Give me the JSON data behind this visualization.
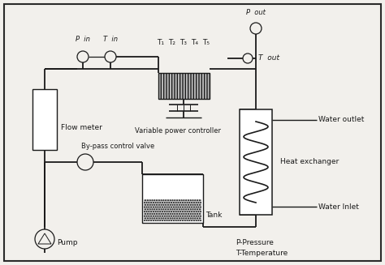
{
  "bg_color": "#f2f0ec",
  "border_color": "#2a2a2a",
  "line_color": "#1a1a1a",
  "labels": {
    "P_in": "P  in",
    "T_in": "T  in",
    "T1": "T₁",
    "T2": "T₂",
    "T3": "T₃",
    "T4": "T₄",
    "T5": "T₅",
    "P_out": "P  out",
    "T_out": "T  out",
    "water_outlet": "Water outlet",
    "heat_exchanger": "Heat exchanger",
    "water_inlet": "Water Inlet",
    "flow_meter": "Flow meter",
    "bypass": "By-pass control valve",
    "pump": "Pump",
    "tank": "Tank",
    "vpc": "Variable power controller",
    "legend1": "P-Pressure",
    "legend2": "T-Temperature"
  }
}
